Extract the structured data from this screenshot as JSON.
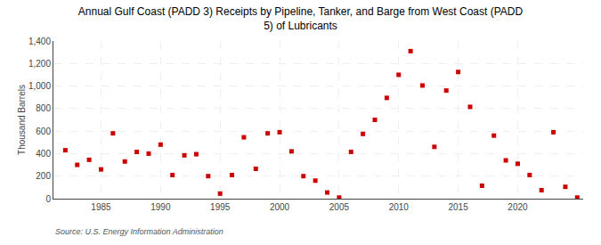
{
  "chart_data": {
    "type": "scatter",
    "title": "Annual Gulf Coast (PADD 3) Receipts by Pipeline, Tanker, and Barge from West Coast (PADD\n5) of Lubricants",
    "ylabel": "Thousand Barrels",
    "source": "Source: U.S. Energy Information Administration",
    "color": "#cc0000",
    "marker": "square",
    "grid": true,
    "x": [
      1982,
      1983,
      1984,
      1985,
      1986,
      1987,
      1988,
      1989,
      1990,
      1991,
      1992,
      1993,
      1994,
      1995,
      1996,
      1997,
      1998,
      1999,
      2000,
      2001,
      2002,
      2003,
      2004,
      2005,
      2006,
      2007,
      2008,
      2009,
      2010,
      2011,
      2012,
      2013,
      2014,
      2015,
      2016,
      2017,
      2018,
      2019,
      2020,
      2021,
      2022,
      2023,
      2024,
      2025
    ],
    "values": [
      430,
      300,
      345,
      260,
      580,
      330,
      415,
      400,
      480,
      210,
      385,
      395,
      200,
      45,
      210,
      545,
      265,
      580,
      590,
      420,
      200,
      160,
      55,
      10,
      415,
      575,
      700,
      895,
      1100,
      1310,
      1005,
      460,
      960,
      1125,
      815,
      115,
      560,
      340,
      310,
      210,
      75,
      590,
      105,
      10
    ],
    "xlim": [
      1981,
      2025.5
    ],
    "xticks": [
      1985,
      1990,
      1995,
      2000,
      2005,
      2010,
      2015,
      2020
    ],
    "ylim": [
      0,
      1400
    ],
    "yticks": [
      0,
      200,
      400,
      600,
      800,
      {
        "value": 1000,
        "label": "1,000"
      },
      {
        "value": 1200,
        "label": "1,200"
      },
      {
        "value": 1400,
        "label": "1,400"
      }
    ]
  }
}
